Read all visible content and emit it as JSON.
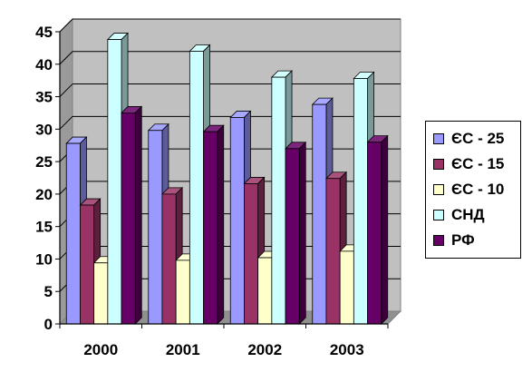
{
  "chart_data": {
    "type": "bar",
    "categories": [
      "2000",
      "2001",
      "2002",
      "2003"
    ],
    "series": [
      {
        "name": "ЄС - 25",
        "color": "#9999ff",
        "values": [
          27.8,
          29.8,
          31.8,
          33.8
        ]
      },
      {
        "name": "ЄС - 15",
        "color": "#993366",
        "values": [
          18.3,
          20.0,
          21.6,
          22.4
        ]
      },
      {
        "name": "ЄС - 10",
        "color": "#ffffcc",
        "values": [
          9.4,
          9.8,
          10.2,
          11.2
        ]
      },
      {
        "name": "СНД",
        "color": "#ccffff",
        "values": [
          43.8,
          42.0,
          38.0,
          37.8
        ]
      },
      {
        "name": "РФ",
        "color": "#660066",
        "values": [
          32.5,
          29.6,
          27.0,
          28.0
        ]
      }
    ],
    "yticks": [
      "0",
      "5",
      "10",
      "15",
      "20",
      "25",
      "30",
      "35",
      "40",
      "45"
    ],
    "ylim": [
      0,
      45
    ],
    "grid": true,
    "legend": "right",
    "title": "",
    "xlabel": "",
    "ylabel": "",
    "plot_background": "#c0c0c0"
  }
}
